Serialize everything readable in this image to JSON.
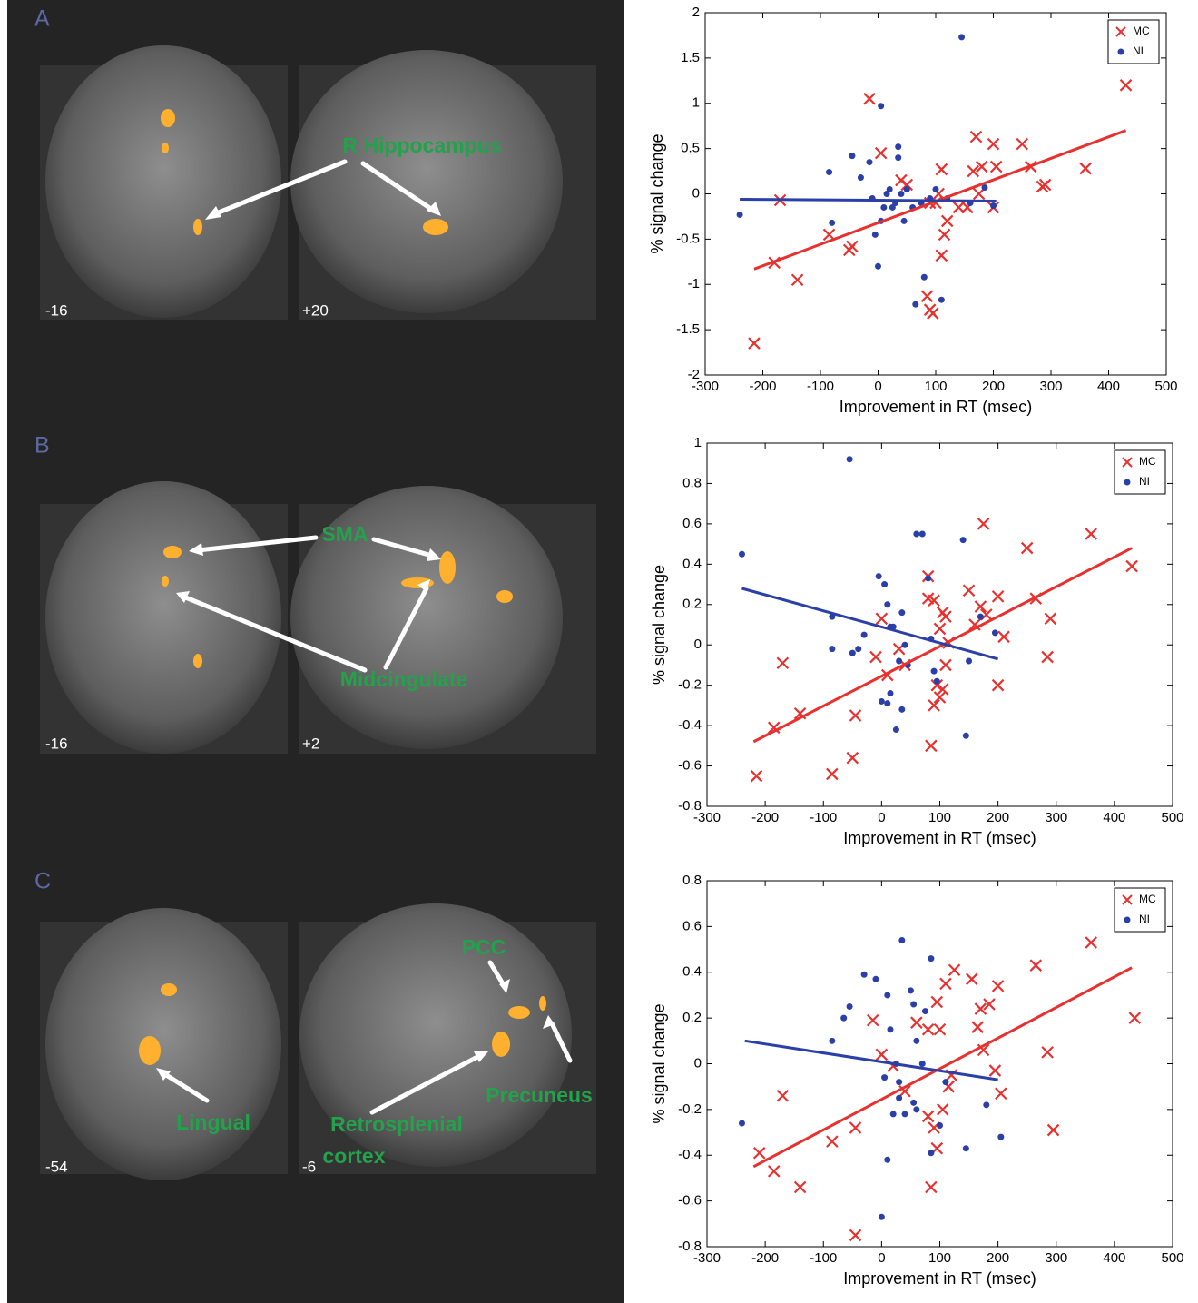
{
  "panels": [
    {
      "label": "A",
      "slices": [
        "-16",
        "+20"
      ],
      "annotations": [
        "R Hippocampus"
      ]
    },
    {
      "label": "B",
      "slices": [
        "-16",
        "+2"
      ],
      "annotations": [
        "SMA",
        "Midcingulate"
      ]
    },
    {
      "label": "C",
      "slices": [
        "-54",
        "-6"
      ],
      "annotations": [
        "PCC",
        "Precuneus",
        "Lingual",
        "Retrosplenial",
        "cortex"
      ]
    }
  ],
  "chart_data": [
    {
      "type": "scatter",
      "xlabel": "Improvement in RT (msec)",
      "ylabel": "% signal change",
      "xlim": [
        -300,
        500
      ],
      "xticks": [
        -300,
        -200,
        -100,
        0,
        100,
        200,
        300,
        400,
        500
      ],
      "ylim": [
        -2,
        2
      ],
      "yticks": [
        -2,
        -1.5,
        -1,
        -0.5,
        0,
        0.5,
        1,
        1.5,
        2
      ],
      "legend": "upper right",
      "series": [
        {
          "name": "MC",
          "color": "#e8312f",
          "marker": "x",
          "x": [
            430,
            360,
            290,
            285,
            265,
            250,
            200,
            205,
            170,
            180,
            165,
            175,
            200,
            155,
            140,
            115,
            110,
            120,
            110,
            100,
            90,
            85,
            95,
            90,
            50,
            40,
            -15,
            5,
            -45,
            -50,
            -85,
            -140,
            -170,
            -180,
            -215,
            105
          ],
          "values": [
            1.2,
            0.28,
            0.1,
            0.08,
            0.3,
            0.55,
            0.55,
            0.3,
            0.63,
            0.3,
            0.25,
            0,
            -0.15,
            -0.15,
            -0.15,
            -0.45,
            -0.68,
            -0.3,
            0.27,
            -0.1,
            -0.1,
            -1.13,
            -1.32,
            -1.28,
            0.1,
            0.15,
            1.05,
            0.45,
            -0.58,
            -0.62,
            -0.45,
            -0.95,
            -0.07,
            -0.76,
            -1.65,
            0
          ]
        },
        {
          "name": "NI",
          "color": "#2b3fa8",
          "marker": "o",
          "x": [
            145,
            5,
            -240,
            -85,
            -80,
            -45,
            -30,
            -15,
            -5,
            0,
            5,
            10,
            15,
            20,
            25,
            35,
            35,
            40,
            45,
            50,
            60,
            65,
            75,
            80,
            90,
            100,
            110,
            120,
            160,
            185,
            200,
            30,
            -10
          ],
          "values": [
            1.73,
            0.97,
            -0.23,
            0.24,
            -0.32,
            0.42,
            0.18,
            0.35,
            -0.45,
            -0.8,
            -0.3,
            -0.15,
            0,
            0.05,
            -0.15,
            0.52,
            0.4,
            0,
            -0.3,
            0.05,
            -0.15,
            -1.22,
            -0.1,
            -0.92,
            -0.05,
            0.05,
            -1.17,
            -0.05,
            -0.1,
            0.07,
            -0.13,
            -0.1,
            -0.05
          ]
        }
      ],
      "fit_lines": [
        {
          "color": "#e8312f",
          "x": [
            -215,
            430
          ],
          "values": [
            -0.83,
            0.7
          ]
        },
        {
          "color": "#2b3fa8",
          "x": [
            -240,
            205
          ],
          "values": [
            -0.06,
            -0.08
          ]
        }
      ]
    },
    {
      "type": "scatter",
      "xlabel": "Improvement in RT (msec)",
      "ylabel": "% signal change",
      "xlim": [
        -300,
        500
      ],
      "xticks": [
        -300,
        -200,
        -100,
        0,
        100,
        200,
        300,
        400,
        500
      ],
      "ylim": [
        -0.8,
        1
      ],
      "yticks": [
        -0.8,
        -0.6,
        -0.4,
        -0.2,
        0,
        0.2,
        0.4,
        0.6,
        0.8,
        1
      ],
      "legend": "upper right",
      "series": [
        {
          "name": "MC",
          "color": "#e8312f",
          "marker": "x",
          "x": [
            430,
            360,
            290,
            285,
            265,
            250,
            200,
            200,
            210,
            175,
            180,
            170,
            150,
            160,
            110,
            105,
            100,
            115,
            110,
            105,
            100,
            95,
            90,
            85,
            90,
            80,
            80,
            40,
            30,
            10,
            -10,
            0,
            -45,
            -50,
            -85,
            -140,
            -170,
            -185,
            -215
          ],
          "values": [
            0.39,
            0.55,
            0.13,
            -0.06,
            0.23,
            0.48,
            0.24,
            -0.2,
            0.04,
            0.6,
            0.15,
            0.19,
            0.27,
            0.1,
            0.14,
            0.16,
            0.08,
            0.01,
            -0.1,
            -0.22,
            -0.26,
            -0.2,
            -0.3,
            -0.5,
            0.22,
            0.34,
            0.23,
            -0.1,
            -0.02,
            -0.15,
            -0.06,
            0.13,
            -0.35,
            -0.56,
            -0.64,
            -0.34,
            -0.09,
            -0.41,
            -0.65
          ]
        },
        {
          "name": "NI",
          "color": "#2b3fa8",
          "marker": "o",
          "x": [
            -55,
            -240,
            -85,
            -85,
            -50,
            -30,
            -5,
            5,
            10,
            15,
            20,
            30,
            35,
            40,
            45,
            60,
            70,
            80,
            85,
            90,
            95,
            140,
            145,
            150,
            170,
            195,
            0,
            10,
            15,
            25,
            35,
            -40
          ],
          "values": [
            0.92,
            0.45,
            0.14,
            -0.02,
            -0.04,
            0.05,
            0.34,
            0.3,
            0.2,
            0.09,
            0.09,
            -0.08,
            0.16,
            0,
            -0.1,
            0.55,
            0.55,
            0.33,
            0.03,
            -0.13,
            -0.18,
            0.52,
            -0.45,
            -0.08,
            0.14,
            0.06,
            -0.28,
            -0.29,
            -0.24,
            -0.42,
            -0.32,
            -0.02
          ]
        }
      ],
      "fit_lines": [
        {
          "color": "#e8312f",
          "x": [
            -220,
            430
          ],
          "values": [
            -0.48,
            0.48
          ]
        },
        {
          "color": "#2b3fa8",
          "x": [
            -240,
            200
          ],
          "values": [
            0.28,
            -0.07
          ]
        }
      ]
    },
    {
      "type": "scatter",
      "xlabel": "Improvement in RT (msec)",
      "ylabel": "% signal change",
      "xlim": [
        -300,
        500
      ],
      "xticks": [
        -300,
        -200,
        -100,
        0,
        100,
        200,
        300,
        400,
        500
      ],
      "ylim": [
        -0.8,
        0.8
      ],
      "yticks": [
        -0.8,
        -0.6,
        -0.4,
        -0.2,
        0,
        0.2,
        0.4,
        0.6,
        0.8
      ],
      "legend": "upper right",
      "series": [
        {
          "name": "MC",
          "color": "#e8312f",
          "marker": "x",
          "x": [
            435,
            360,
            295,
            285,
            265,
            205,
            200,
            195,
            185,
            175,
            170,
            165,
            155,
            125,
            115,
            110,
            105,
            100,
            95,
            90,
            85,
            80,
            80,
            95,
            60,
            40,
            20,
            0,
            -15,
            -45,
            -45,
            -85,
            -140,
            -170,
            -185,
            -210,
            120
          ],
          "values": [
            0.2,
            0.53,
            -0.29,
            0.05,
            0.43,
            -0.13,
            0.34,
            -0.03,
            0.26,
            0.06,
            0.24,
            0.16,
            0.37,
            0.41,
            -0.1,
            0.35,
            -0.2,
            0.15,
            0.27,
            -0.28,
            -0.54,
            -0.23,
            0.15,
            -0.37,
            0.18,
            -0.12,
            -0.01,
            0.04,
            0.19,
            -0.28,
            -0.75,
            -0.34,
            -0.54,
            -0.14,
            -0.47,
            -0.39,
            -0.05
          ]
        },
        {
          "name": "NI",
          "color": "#2b3fa8",
          "marker": "o",
          "x": [
            -240,
            -85,
            -65,
            -55,
            -30,
            -10,
            35,
            10,
            15,
            50,
            55,
            85,
            75,
            60,
            30,
            25,
            10,
            0,
            20,
            40,
            55,
            60,
            85,
            100,
            110,
            145,
            180,
            205,
            70,
            30,
            5
          ],
          "values": [
            -0.26,
            0.1,
            0.2,
            0.25,
            0.39,
            0.37,
            0.54,
            0.3,
            0.15,
            0.32,
            0.26,
            0.46,
            0.23,
            0.1,
            -0.08,
            0,
            -0.42,
            -0.67,
            -0.22,
            -0.22,
            -0.17,
            -0.2,
            -0.39,
            -0.27,
            -0.08,
            -0.37,
            -0.18,
            -0.32,
            0,
            -0.15,
            -0.06
          ]
        }
      ],
      "fit_lines": [
        {
          "color": "#e8312f",
          "x": [
            -220,
            430
          ],
          "values": [
            -0.45,
            0.42
          ]
        },
        {
          "color": "#2b3fa8",
          "x": [
            -235,
            200
          ],
          "values": [
            0.1,
            -0.07
          ]
        }
      ]
    }
  ]
}
